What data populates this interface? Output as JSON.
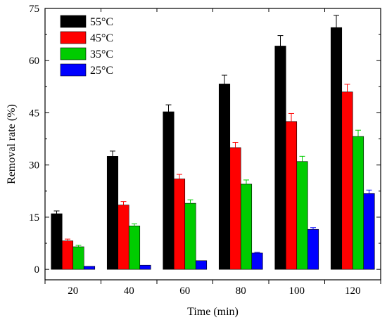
{
  "chart_data": {
    "type": "bar",
    "xlabel": "Time (min)",
    "ylabel": "Removal rate (%)",
    "ylim": [
      -3,
      75
    ],
    "yticks": [
      0,
      15,
      30,
      45,
      60,
      75
    ],
    "categories": [
      "20",
      "40",
      "60",
      "80",
      "100",
      "120"
    ],
    "legend_position": "top-left",
    "series": [
      {
        "name": "55°C",
        "color": "#000000",
        "values": [
          16.0,
          32.5,
          45.3,
          53.3,
          64.2,
          69.5
        ],
        "errors": [
          0.8,
          1.5,
          2.0,
          2.5,
          3.0,
          3.5
        ]
      },
      {
        "name": "45°C",
        "color": "#ff0000",
        "values": [
          8.2,
          18.5,
          26.0,
          35.0,
          42.5,
          51.0
        ],
        "errors": [
          0.5,
          1.0,
          1.3,
          1.5,
          2.3,
          2.2
        ]
      },
      {
        "name": "35°C",
        "color": "#00cc00",
        "values": [
          6.5,
          12.5,
          19.0,
          24.5,
          31.0,
          38.2
        ],
        "errors": [
          0.4,
          0.6,
          1.0,
          1.2,
          1.5,
          1.8
        ]
      },
      {
        "name": "25°C",
        "color": "#0000ff",
        "values": [
          0.9,
          1.2,
          2.5,
          4.7,
          11.5,
          21.8
        ],
        "errors": [
          0.0,
          0.0,
          0.0,
          0.2,
          0.5,
          1.0
        ]
      }
    ]
  }
}
